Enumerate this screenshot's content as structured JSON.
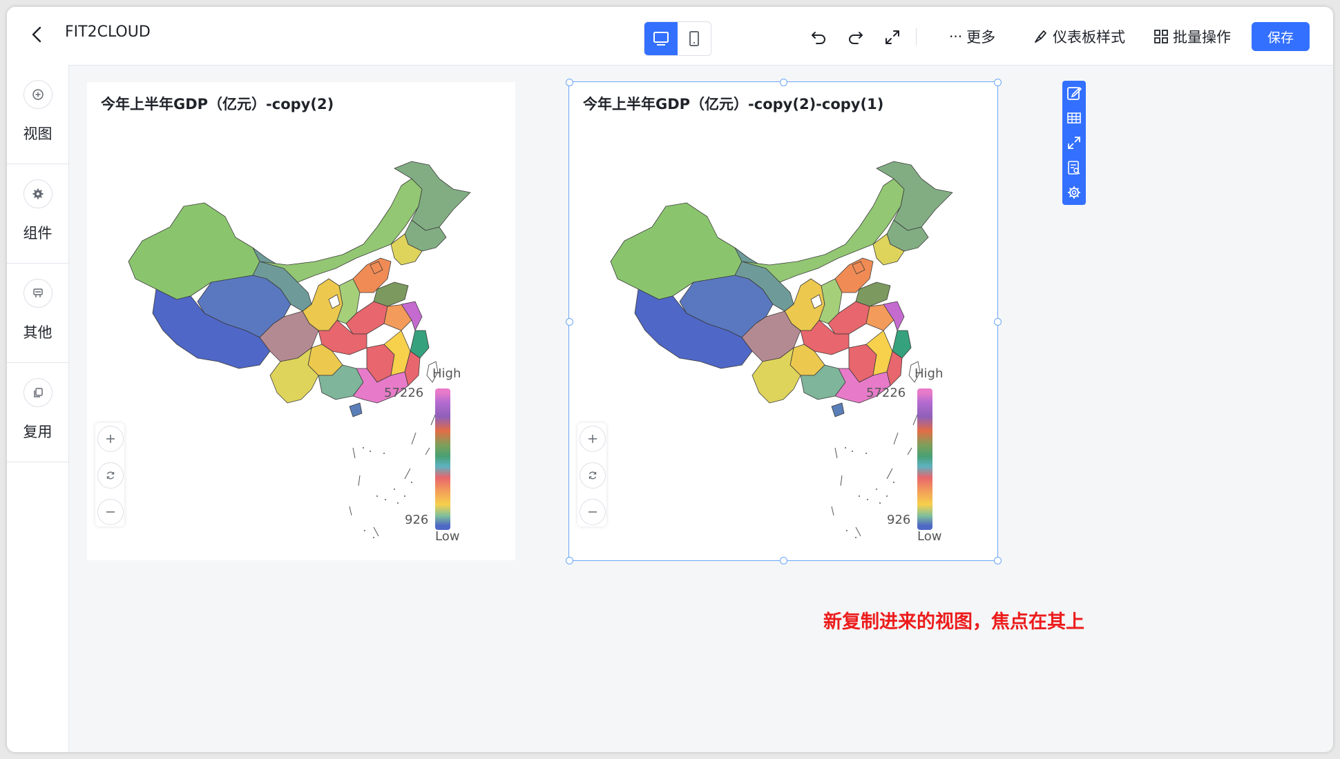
{
  "header": {
    "title": "FIT2CLOUD",
    "back_icon": "chevron-left-icon",
    "view_modes": [
      {
        "name": "pc",
        "icon": "monitor-icon",
        "active": true
      },
      {
        "name": "mobile",
        "icon": "phone-icon",
        "active": false
      }
    ],
    "actions": {
      "undo_icon": "undo-icon",
      "redo_icon": "redo-icon",
      "fullscreen_icon": "expand-icon",
      "more_label": "更多",
      "style_label": "仪表板样式",
      "batch_label": "批量操作",
      "save_label": "保存"
    },
    "accent_color": "#3370ff"
  },
  "sidebar": {
    "items": [
      {
        "label": "视图",
        "icon": "plus-circle-icon"
      },
      {
        "label": "组件",
        "icon": "gear-icon"
      },
      {
        "label": "其他",
        "icon": "layers-icon"
      },
      {
        "label": "复用",
        "icon": "copy-icon"
      }
    ]
  },
  "cards": [
    {
      "title": "今年上半年GDP（亿元）-copy(2)",
      "selected": false,
      "legend": {
        "high_label": "High",
        "low_label": "Low",
        "max": "57226",
        "min": "926"
      }
    },
    {
      "title": "今年上半年GDP（亿元）-copy(2)-copy(1)",
      "selected": true,
      "legend": {
        "high_label": "High",
        "low_label": "Low",
        "max": "57226",
        "min": "926"
      },
      "toolbar_icons": [
        "edit-icon",
        "grid-icon",
        "expand-icon",
        "detail-icon",
        "settings-icon"
      ]
    }
  ],
  "zoom_controls": {
    "zoom_in_icon": "plus-icon",
    "reset_icon": "refresh-icon",
    "zoom_out_icon": "minus-icon"
  },
  "annotation": {
    "text": "新复制进来的视图，焦点在其上",
    "color": "#ec1c1c"
  }
}
